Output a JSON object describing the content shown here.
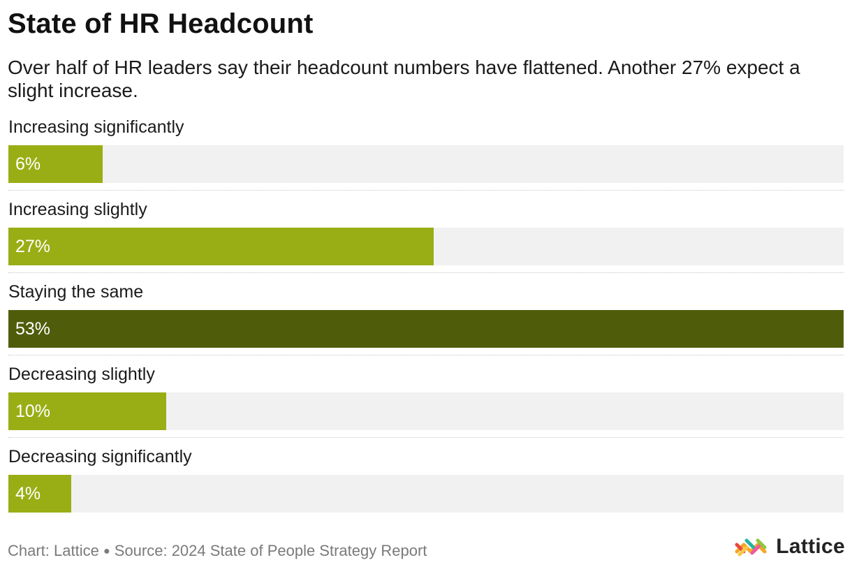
{
  "chart_data": {
    "type": "bar",
    "orientation": "horizontal",
    "title": "State of HR Headcount",
    "subtitle": "Over half of HR leaders say their headcount numbers have flattened. Another 27% expect a slight increase.",
    "categories": [
      "Increasing significantly",
      "Increasing slightly",
      "Staying the same",
      "Decreasing slightly",
      "Decreasing significantly"
    ],
    "values": [
      6,
      27,
      53,
      10,
      4
    ],
    "value_labels": [
      "6%",
      "27%",
      "53%",
      "10%",
      "4%"
    ],
    "highlight_index": 2,
    "xlim": [
      0,
      53
    ],
    "xlabel": "",
    "ylabel": ""
  },
  "colors": {
    "bar": "#99ae15",
    "bar_highlight": "#4f5d0a",
    "track": "#f1f1f1"
  },
  "footer": {
    "chart_credit": "Chart: Lattice",
    "source": "Source: 2024 State of People Strategy Report"
  },
  "brand": {
    "name": "Lattice",
    "logo_icon": "lattice-logo-icon"
  }
}
